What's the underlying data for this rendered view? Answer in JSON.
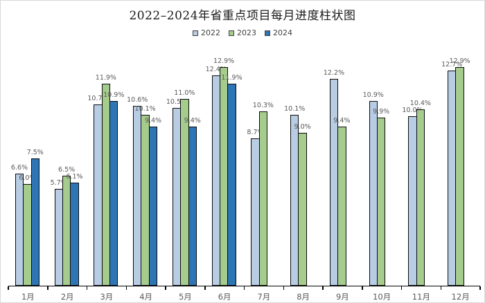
{
  "title": "2022–2024年省重点项目每月进度柱状图",
  "legend": {
    "position": "top",
    "items": [
      {
        "label": "2022",
        "color": "#b8cce4"
      },
      {
        "label": "2023",
        "color": "#a5cb8d"
      },
      {
        "label": "2024",
        "color": "#2e75b6"
      }
    ]
  },
  "colors": {
    "bar_border": "#0a0a0a",
    "axis": "#000000",
    "label_text": "#595959",
    "title_text": "#1a1a1a",
    "frame_border": "#d9d9d9",
    "background": "#ffffff"
  },
  "chart_data": {
    "type": "bar",
    "title": "2022–2024年省重点项目每月进度柱状图",
    "categories": [
      "1月",
      "2月",
      "3月",
      "4月",
      "5月",
      "6月",
      "7月",
      "8月",
      "9月",
      "10月",
      "11月",
      "12月"
    ],
    "series": [
      {
        "name": "2022",
        "color": "#b8cce4",
        "values": [
          6.6,
          5.7,
          10.7,
          10.6,
          10.5,
          12.4,
          8.7,
          10.1,
          12.2,
          10.9,
          10.0,
          12.7
        ]
      },
      {
        "name": "2023",
        "color": "#a5cb8d",
        "values": [
          6.0,
          6.5,
          11.9,
          10.1,
          11.0,
          12.9,
          10.3,
          9.0,
          9.4,
          9.9,
          10.4,
          12.9
        ]
      },
      {
        "name": "2024",
        "color": "#2e75b6",
        "values": [
          7.5,
          6.1,
          10.9,
          9.4,
          9.4,
          11.9,
          null,
          null,
          null,
          null,
          null,
          null
        ]
      }
    ],
    "value_suffix": "%",
    "value_decimals": 1,
    "data_labels": "outside-end",
    "xlabel": "",
    "ylabel": "",
    "ylim": [
      0,
      13.5
    ],
    "y_axis_visible": false,
    "grid": false,
    "legend_position": "top"
  }
}
